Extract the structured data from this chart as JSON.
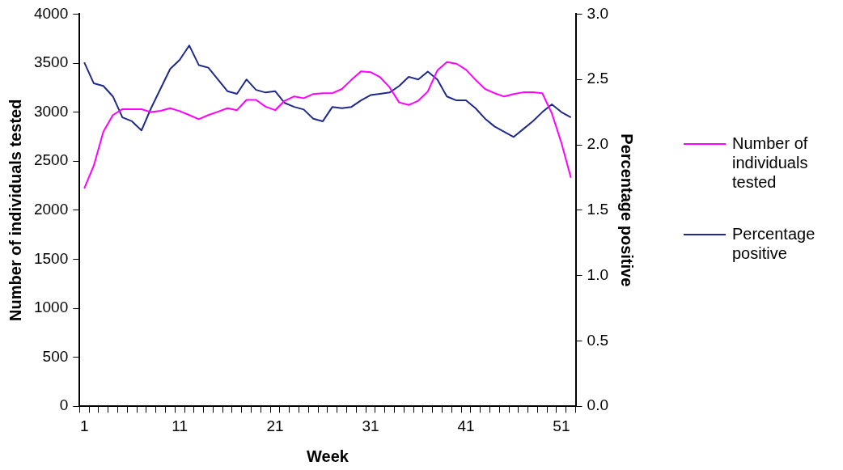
{
  "chart_data": {
    "type": "line",
    "xlabel": "Week",
    "ylabel": "Number of individuals tested",
    "y2label": "Percentage positive",
    "categories": [
      "1",
      null,
      null,
      null,
      null,
      null,
      null,
      null,
      null,
      null,
      "11",
      null,
      null,
      null,
      null,
      null,
      null,
      null,
      null,
      null,
      "21",
      null,
      null,
      null,
      null,
      null,
      null,
      null,
      null,
      null,
      "31",
      null,
      null,
      null,
      null,
      null,
      null,
      null,
      null,
      null,
      "41",
      null,
      null,
      null,
      null,
      null,
      null,
      null,
      null,
      null,
      "51",
      null
    ],
    "series": [
      {
        "name": "Number of individuals tested",
        "color": "#ff00ff",
        "values": [
          2223,
          2455,
          2800,
          2970,
          3030,
          3030,
          3030,
          3000,
          3013,
          3040,
          3010,
          2970,
          2927,
          2970,
          3004,
          3040,
          3020,
          3125,
          3125,
          3056,
          3020,
          3116,
          3160,
          3142,
          3185,
          3193,
          3193,
          3236,
          3330,
          3416,
          3408,
          3356,
          3253,
          3099,
          3073,
          3116,
          3210,
          3425,
          3511,
          3494,
          3433,
          3330,
          3236,
          3193,
          3159,
          3185,
          3202,
          3202,
          3193,
          2987,
          2687,
          2330
        ]
      },
      {
        "name": "Percentage positive",
        "color": "#1f2a8a",
        "axis": "y2",
        "values": [
          2.63,
          2.47,
          2.45,
          2.37,
          2.21,
          2.18,
          2.11,
          2.28,
          2.43,
          2.58,
          2.65,
          2.76,
          2.61,
          2.59,
          2.5,
          2.41,
          2.39,
          2.5,
          2.42,
          2.4,
          2.41,
          2.32,
          2.29,
          2.27,
          2.2,
          2.18,
          2.29,
          2.28,
          2.29,
          2.34,
          2.38,
          2.39,
          2.4,
          2.45,
          2.52,
          2.5,
          2.56,
          2.5,
          2.37,
          2.34,
          2.34,
          2.28,
          2.2,
          2.14,
          2.1,
          2.06,
          2.12,
          2.18,
          2.25,
          2.31,
          2.25,
          2.21
        ]
      }
    ],
    "ylim": [
      0,
      4000
    ],
    "yticks": [
      0,
      500,
      1000,
      1500,
      2000,
      2500,
      3000,
      3500,
      4000
    ],
    "y2lim": [
      0,
      3
    ],
    "y2ticks": [
      {
        "value": 0,
        "label": "0.0"
      },
      {
        "value": 0.5,
        "label": "0.5"
      },
      {
        "value": 1,
        "label": "1.0"
      },
      {
        "value": 1.5,
        "label": "1.5"
      },
      {
        "value": 2,
        "label": "2.0"
      },
      {
        "value": 2.5,
        "label": "2.5"
      },
      {
        "value": 3,
        "label": "3.0"
      }
    ],
    "grid": false,
    "legend": "right",
    "marker": "none",
    "line_style": "solid"
  }
}
